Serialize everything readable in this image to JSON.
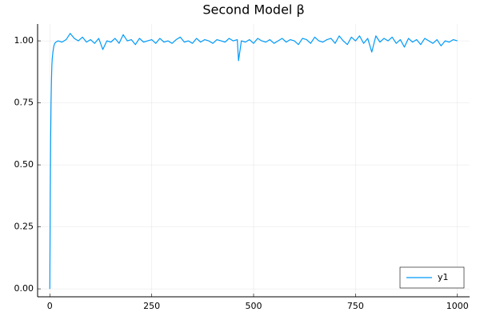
{
  "chart_data": {
    "type": "line",
    "title": "Second Model β",
    "x": [
      0,
      1,
      2,
      3,
      4,
      5,
      6,
      8,
      10,
      12,
      15,
      20,
      30,
      40,
      50,
      60,
      70,
      80,
      90,
      100,
      110,
      120,
      130,
      140,
      150,
      160,
      170,
      180,
      190,
      200,
      210,
      220,
      230,
      240,
      250,
      260,
      270,
      280,
      290,
      300,
      310,
      320,
      330,
      340,
      350,
      360,
      370,
      380,
      390,
      400,
      410,
      420,
      430,
      440,
      450,
      460,
      463,
      470,
      480,
      490,
      500,
      510,
      520,
      530,
      540,
      550,
      560,
      570,
      580,
      590,
      600,
      610,
      620,
      630,
      640,
      650,
      660,
      670,
      680,
      690,
      700,
      710,
      720,
      730,
      740,
      750,
      760,
      770,
      780,
      790,
      800,
      810,
      820,
      830,
      840,
      850,
      860,
      870,
      880,
      890,
      900,
      910,
      920,
      930,
      940,
      950,
      960,
      970,
      980,
      990,
      1000
    ],
    "series": [
      {
        "name": "y1",
        "color": "#009af9",
        "values": [
          0,
          0.35,
          0.6,
          0.75,
          0.84,
          0.9,
          0.93,
          0.96,
          0.98,
          0.99,
          0.995,
          1.0,
          0.995,
          1.005,
          1.03,
          1.01,
          1.0,
          1.015,
          0.995,
          1.005,
          0.99,
          1.01,
          0.965,
          1.0,
          0.995,
          1.01,
          0.99,
          1.025,
          1.0,
          1.005,
          0.985,
          1.01,
          0.995,
          1.0,
          1.005,
          0.99,
          1.01,
          0.995,
          1.0,
          0.99,
          1.005,
          1.015,
          0.995,
          1.0,
          0.99,
          1.01,
          0.995,
          1.005,
          1.0,
          0.99,
          1.005,
          1.0,
          0.995,
          1.01,
          1.0,
          1.005,
          0.92,
          1.0,
          0.995,
          1.005,
          0.99,
          1.01,
          1.0,
          0.995,
          1.005,
          0.99,
          1.0,
          1.01,
          0.995,
          1.005,
          1.0,
          0.985,
          1.01,
          1.005,
          0.99,
          1.015,
          1.0,
          0.995,
          1.005,
          1.01,
          0.99,
          1.02,
          1.0,
          0.985,
          1.015,
          1.0,
          1.02,
          0.99,
          1.01,
          0.955,
          1.02,
          0.995,
          1.01,
          1.0,
          1.015,
          0.99,
          1.005,
          0.975,
          1.01,
          0.995,
          1.005,
          0.985,
          1.01,
          1.0,
          0.99,
          1.005,
          0.98,
          1.0,
          0.995,
          1.005,
          1.0
        ]
      }
    ],
    "xlim": [
      -30,
      1030
    ],
    "xticks": [
      0,
      250,
      500,
      750,
      1000
    ],
    "ylim": [
      -0.032,
      1.068
    ],
    "yticks": [
      {
        "value": 0,
        "label": "0.00"
      },
      {
        "value": 0.25,
        "label": "0.25"
      },
      {
        "value": 0.5,
        "label": "0.50"
      },
      {
        "value": 0.75,
        "label": "0.75"
      },
      {
        "value": 1,
        "label": "1.00"
      }
    ],
    "grid": true,
    "legend": "bottomright"
  }
}
